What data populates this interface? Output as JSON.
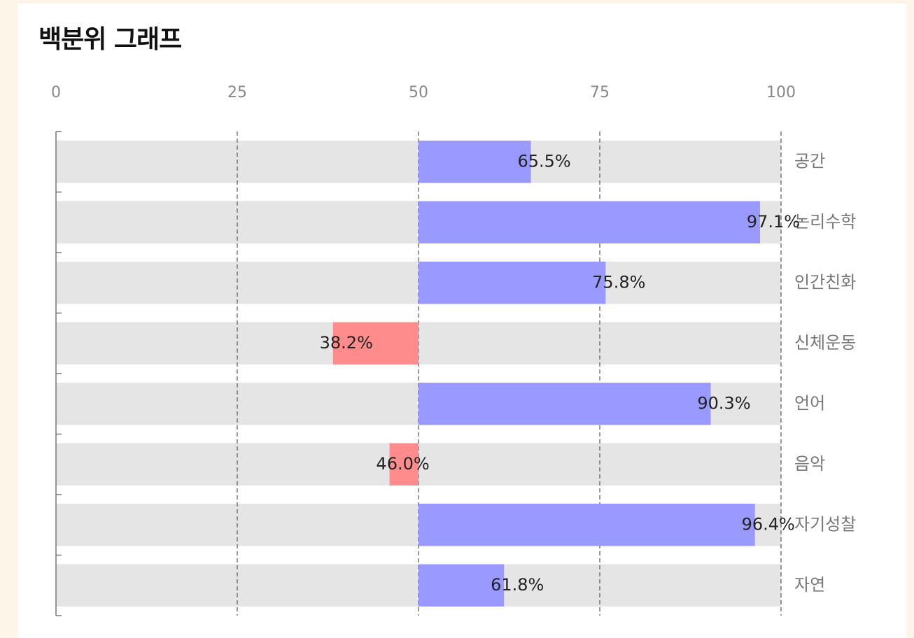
{
  "chart_data": {
    "type": "diverging-bar",
    "title": "백분위 그래프",
    "categories": [
      "공간",
      "논리수학",
      "인간친화",
      "신체운동",
      "언어",
      "음악",
      "자기성찰",
      "자연"
    ],
    "values": [
      65.5,
      97.1,
      75.8,
      38.2,
      90.3,
      46.0,
      96.4,
      61.8
    ],
    "value_labels": [
      "65.5%",
      "97.1%",
      "75.8%",
      "38.2%",
      "90.3%",
      "46.0%",
      "96.4%",
      "61.8%"
    ],
    "baseline": 50,
    "colors": {
      "above": "#9999ff",
      "below": "#ff8c8c"
    },
    "xlim": [
      0,
      100
    ],
    "xticks": [
      0,
      25,
      50,
      75,
      100
    ],
    "grid": true
  }
}
